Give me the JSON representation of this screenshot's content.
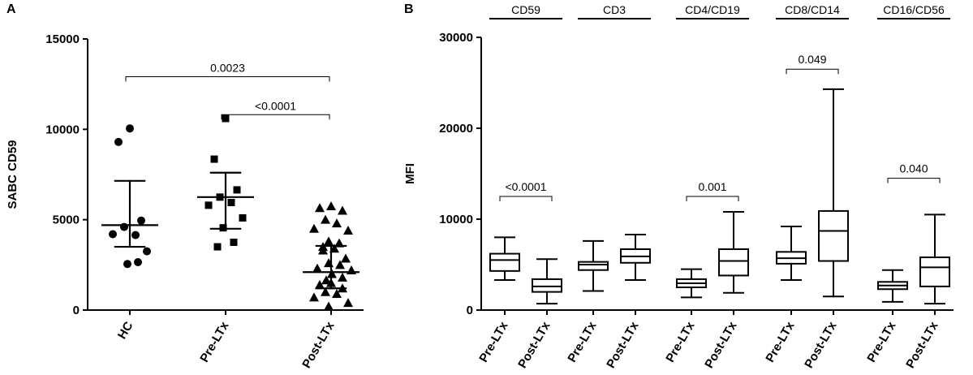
{
  "chart_data": [
    {
      "panel": "A",
      "type": "scatter",
      "ylabel": "SABC CD59",
      "xlabel": "",
      "ylim": [
        0,
        15000
      ],
      "yticks": [
        0,
        5000,
        10000,
        15000
      ],
      "categories": [
        "HC",
        "Pre-LTx",
        "Post-LTx"
      ],
      "markers": [
        "circle",
        "square",
        "triangle"
      ],
      "series": [
        {
          "name": "HC",
          "values": [
            10050,
            9300,
            4950,
            4600,
            4150,
            4200,
            3250,
            2550,
            2650
          ],
          "mean": 4700,
          "upper": 7150,
          "lower": 3500
        },
        {
          "name": "Pre-LTx",
          "values": [
            10600,
            8350,
            6650,
            6250,
            5950,
            5800,
            5100,
            4550,
            3750,
            3500
          ],
          "mean": 6250,
          "upper": 7600,
          "lower": 4500
        },
        {
          "name": "Post-LTx",
          "values": [
            5750,
            5650,
            5500,
            5000,
            4800,
            4500,
            4400,
            3800,
            3700,
            3500,
            3400,
            3300,
            2850,
            2600,
            2500,
            2300,
            2200,
            2000,
            1800,
            1650,
            1500,
            1400,
            1200,
            1000,
            900,
            700,
            400,
            200
          ],
          "mean": 2100,
          "upper": 3550,
          "lower": 1200
        }
      ],
      "comparisons": [
        {
          "from": "HC",
          "to": "Post-LTx",
          "label": "0.0023",
          "y": 13900
        },
        {
          "from": "Pre-LTx",
          "to": "Post-LTx",
          "label": "<0.0001",
          "y": 11800
        }
      ]
    },
    {
      "panel": "B",
      "type": "box",
      "ylabel": "MFI",
      "xlabel": "",
      "ylim": [
        0,
        30000
      ],
      "yticks": [
        0,
        10000,
        20000,
        30000
      ],
      "groups": [
        {
          "title": "CD59",
          "pvalue": "<0.0001",
          "bracket_y": 12500,
          "boxes": [
            {
              "label": "Pre-LTx",
              "min": 3300,
              "q1": 4300,
              "median": 5500,
              "q3": 6200,
              "max": 8000
            },
            {
              "label": "Post-LTx",
              "min": 700,
              "q1": 2000,
              "median": 2600,
              "q3": 3400,
              "max": 5600
            }
          ]
        },
        {
          "title": "CD3",
          "pvalue": "",
          "bracket_y": null,
          "boxes": [
            {
              "label": "Pre-LTx",
              "min": 2100,
              "q1": 4400,
              "median": 5000,
              "q3": 5300,
              "max": 7600
            },
            {
              "label": "Post-LTx",
              "min": 3300,
              "q1": 5200,
              "median": 5900,
              "q3": 6700,
              "max": 8300
            }
          ]
        },
        {
          "title": "CD4/CD19",
          "pvalue": "0.001",
          "bracket_y": 12500,
          "boxes": [
            {
              "label": "Pre-LTx",
              "min": 1400,
              "q1": 2500,
              "median": 2950,
              "q3": 3400,
              "max": 4500
            },
            {
              "label": "Post-LTx",
              "min": 1900,
              "q1": 3800,
              "median": 5400,
              "q3": 6700,
              "max": 10800
            }
          ]
        },
        {
          "title": "CD8/CD14",
          "pvalue": "0.049",
          "bracket_y": 26500,
          "boxes": [
            {
              "label": "Pre-LTx",
              "min": 3300,
              "q1": 5100,
              "median": 5700,
              "q3": 6400,
              "max": 9200
            },
            {
              "label": "Post-LTx",
              "min": 1500,
              "q1": 5400,
              "median": 8700,
              "q3": 10900,
              "max": 24300
            }
          ]
        },
        {
          "title": "CD16/CD56",
          "pvalue": "0.040",
          "bracket_y": 14500,
          "boxes": [
            {
              "label": "Pre-LTx",
              "min": 900,
              "q1": 2300,
              "median": 2700,
              "q3": 3100,
              "max": 4400
            },
            {
              "label": "Post-LTx",
              "min": 700,
              "q1": 2600,
              "median": 4700,
              "q3": 5800,
              "max": 10500
            }
          ]
        }
      ]
    }
  ]
}
